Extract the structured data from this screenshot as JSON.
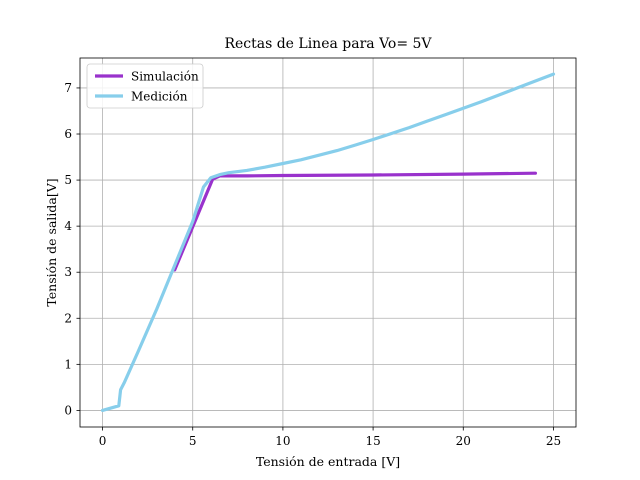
{
  "chart_data": {
    "type": "line",
    "title": "Rectas de Linea para Vo= 5V",
    "xlabel": "Tensión de entrada [V]",
    "ylabel": "Tensión de salida[V]",
    "xlim": [
      -1.25,
      26.25
    ],
    "ylim": [
      -0.36,
      7.65
    ],
    "xticks": [
      0,
      5,
      10,
      15,
      20,
      25
    ],
    "yticks": [
      0,
      1,
      2,
      3,
      4,
      5,
      6,
      7
    ],
    "grid": true,
    "legend_position": "top-left",
    "series": [
      {
        "name": "Simulación",
        "color": "#9932CC",
        "x": [
          4.0,
          6.1,
          6.5,
          8,
          10,
          15,
          20,
          24
        ],
        "y": [
          3.05,
          5.02,
          5.09,
          5.09,
          5.1,
          5.11,
          5.13,
          5.15
        ]
      },
      {
        "name": "Medición",
        "color": "#87CEEB",
        "x": [
          0,
          0.9,
          1.0,
          1.2,
          2,
          3,
          4,
          5,
          5.6,
          6.0,
          6.5,
          7,
          8,
          9,
          10,
          11,
          12,
          13,
          14,
          15,
          16,
          17,
          18,
          19,
          20,
          21,
          22,
          23,
          24,
          25
        ],
        "y": [
          0,
          0.1,
          0.45,
          0.6,
          1.3,
          2.2,
          3.15,
          4.1,
          4.85,
          5.05,
          5.12,
          5.16,
          5.21,
          5.28,
          5.36,
          5.44,
          5.54,
          5.64,
          5.76,
          5.88,
          6.01,
          6.14,
          6.28,
          6.42,
          6.56,
          6.7,
          6.85,
          7.0,
          7.15,
          7.3
        ]
      }
    ]
  }
}
